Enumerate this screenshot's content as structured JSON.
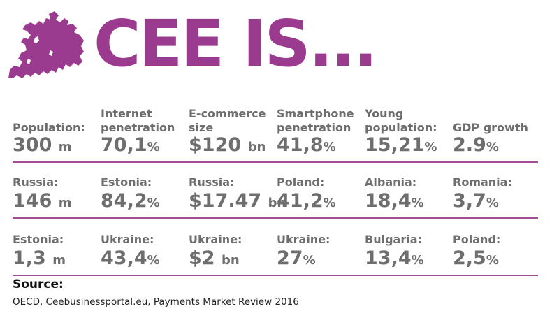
{
  "header": {
    "title": "CEE IS...",
    "accent_color": "#9b3b8f",
    "icon": "europe-map-icon"
  },
  "rows": [
    {
      "cells": [
        {
          "label": "Population:",
          "number": "300",
          "unit": "m"
        },
        {
          "label": "Internet\npenetration",
          "number": "70,1",
          "unit": "%"
        },
        {
          "label": "E-commerce\nsize",
          "number": "$120",
          "unit": "bn"
        },
        {
          "label": "Smartphone\npenetration",
          "number": "41,8",
          "unit": "%"
        },
        {
          "label": "Young\npopulation:",
          "number": "15,21",
          "unit": "%"
        },
        {
          "label": "GDP growth",
          "number": "2.9",
          "unit": "%"
        }
      ]
    },
    {
      "cells": [
        {
          "label": "Russia:",
          "number": "146",
          "unit": "m"
        },
        {
          "label": "Estonia:",
          "number": "84,2",
          "unit": "%"
        },
        {
          "label": "Russia:",
          "number": "$17.47",
          "unit": "bn"
        },
        {
          "label": "Poland:",
          "number": "41,2",
          "unit": "%"
        },
        {
          "label": "Albania:",
          "number": "18,4",
          "unit": "%"
        },
        {
          "label": "Romania:",
          "number": "3,7",
          "unit": "%"
        }
      ]
    },
    {
      "cells": [
        {
          "label": "Estonia:",
          "number": "1,3",
          "unit": "m"
        },
        {
          "label": "Ukraine:",
          "number": "43,4",
          "unit": "%"
        },
        {
          "label": "Ukraine:",
          "number": "$2",
          "unit": "bn"
        },
        {
          "label": "Ukraine:",
          "number": "27",
          "unit": "%"
        },
        {
          "label": "Bulgaria:",
          "number": "13,4",
          "unit": "%"
        },
        {
          "label": "Poland:",
          "number": "2,5",
          "unit": "%"
        }
      ]
    }
  ],
  "source": {
    "title": "Source:",
    "text": "OECD, Ceebusinessportal.eu, Payments Market Review 2016"
  }
}
